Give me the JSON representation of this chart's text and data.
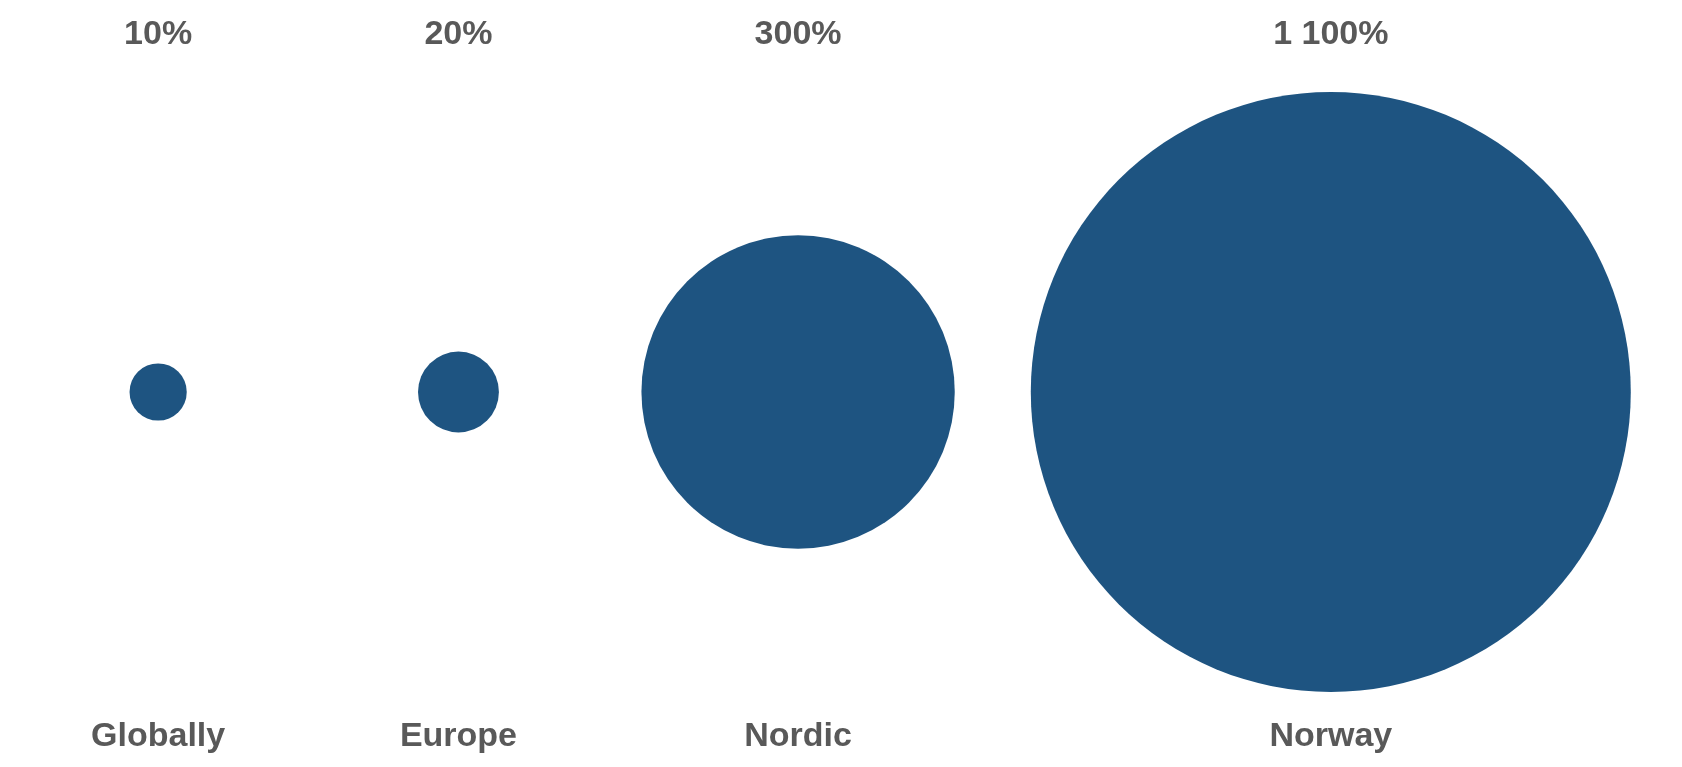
{
  "chart_data": {
    "type": "other",
    "categories": [
      "Globally",
      "Europe",
      "Nordic",
      "Norway"
    ],
    "values": [
      10,
      20,
      300,
      1100
    ],
    "value_labels": [
      "10%",
      "20%",
      "300%",
      "1 100%"
    ],
    "color": "#1e5481"
  }
}
